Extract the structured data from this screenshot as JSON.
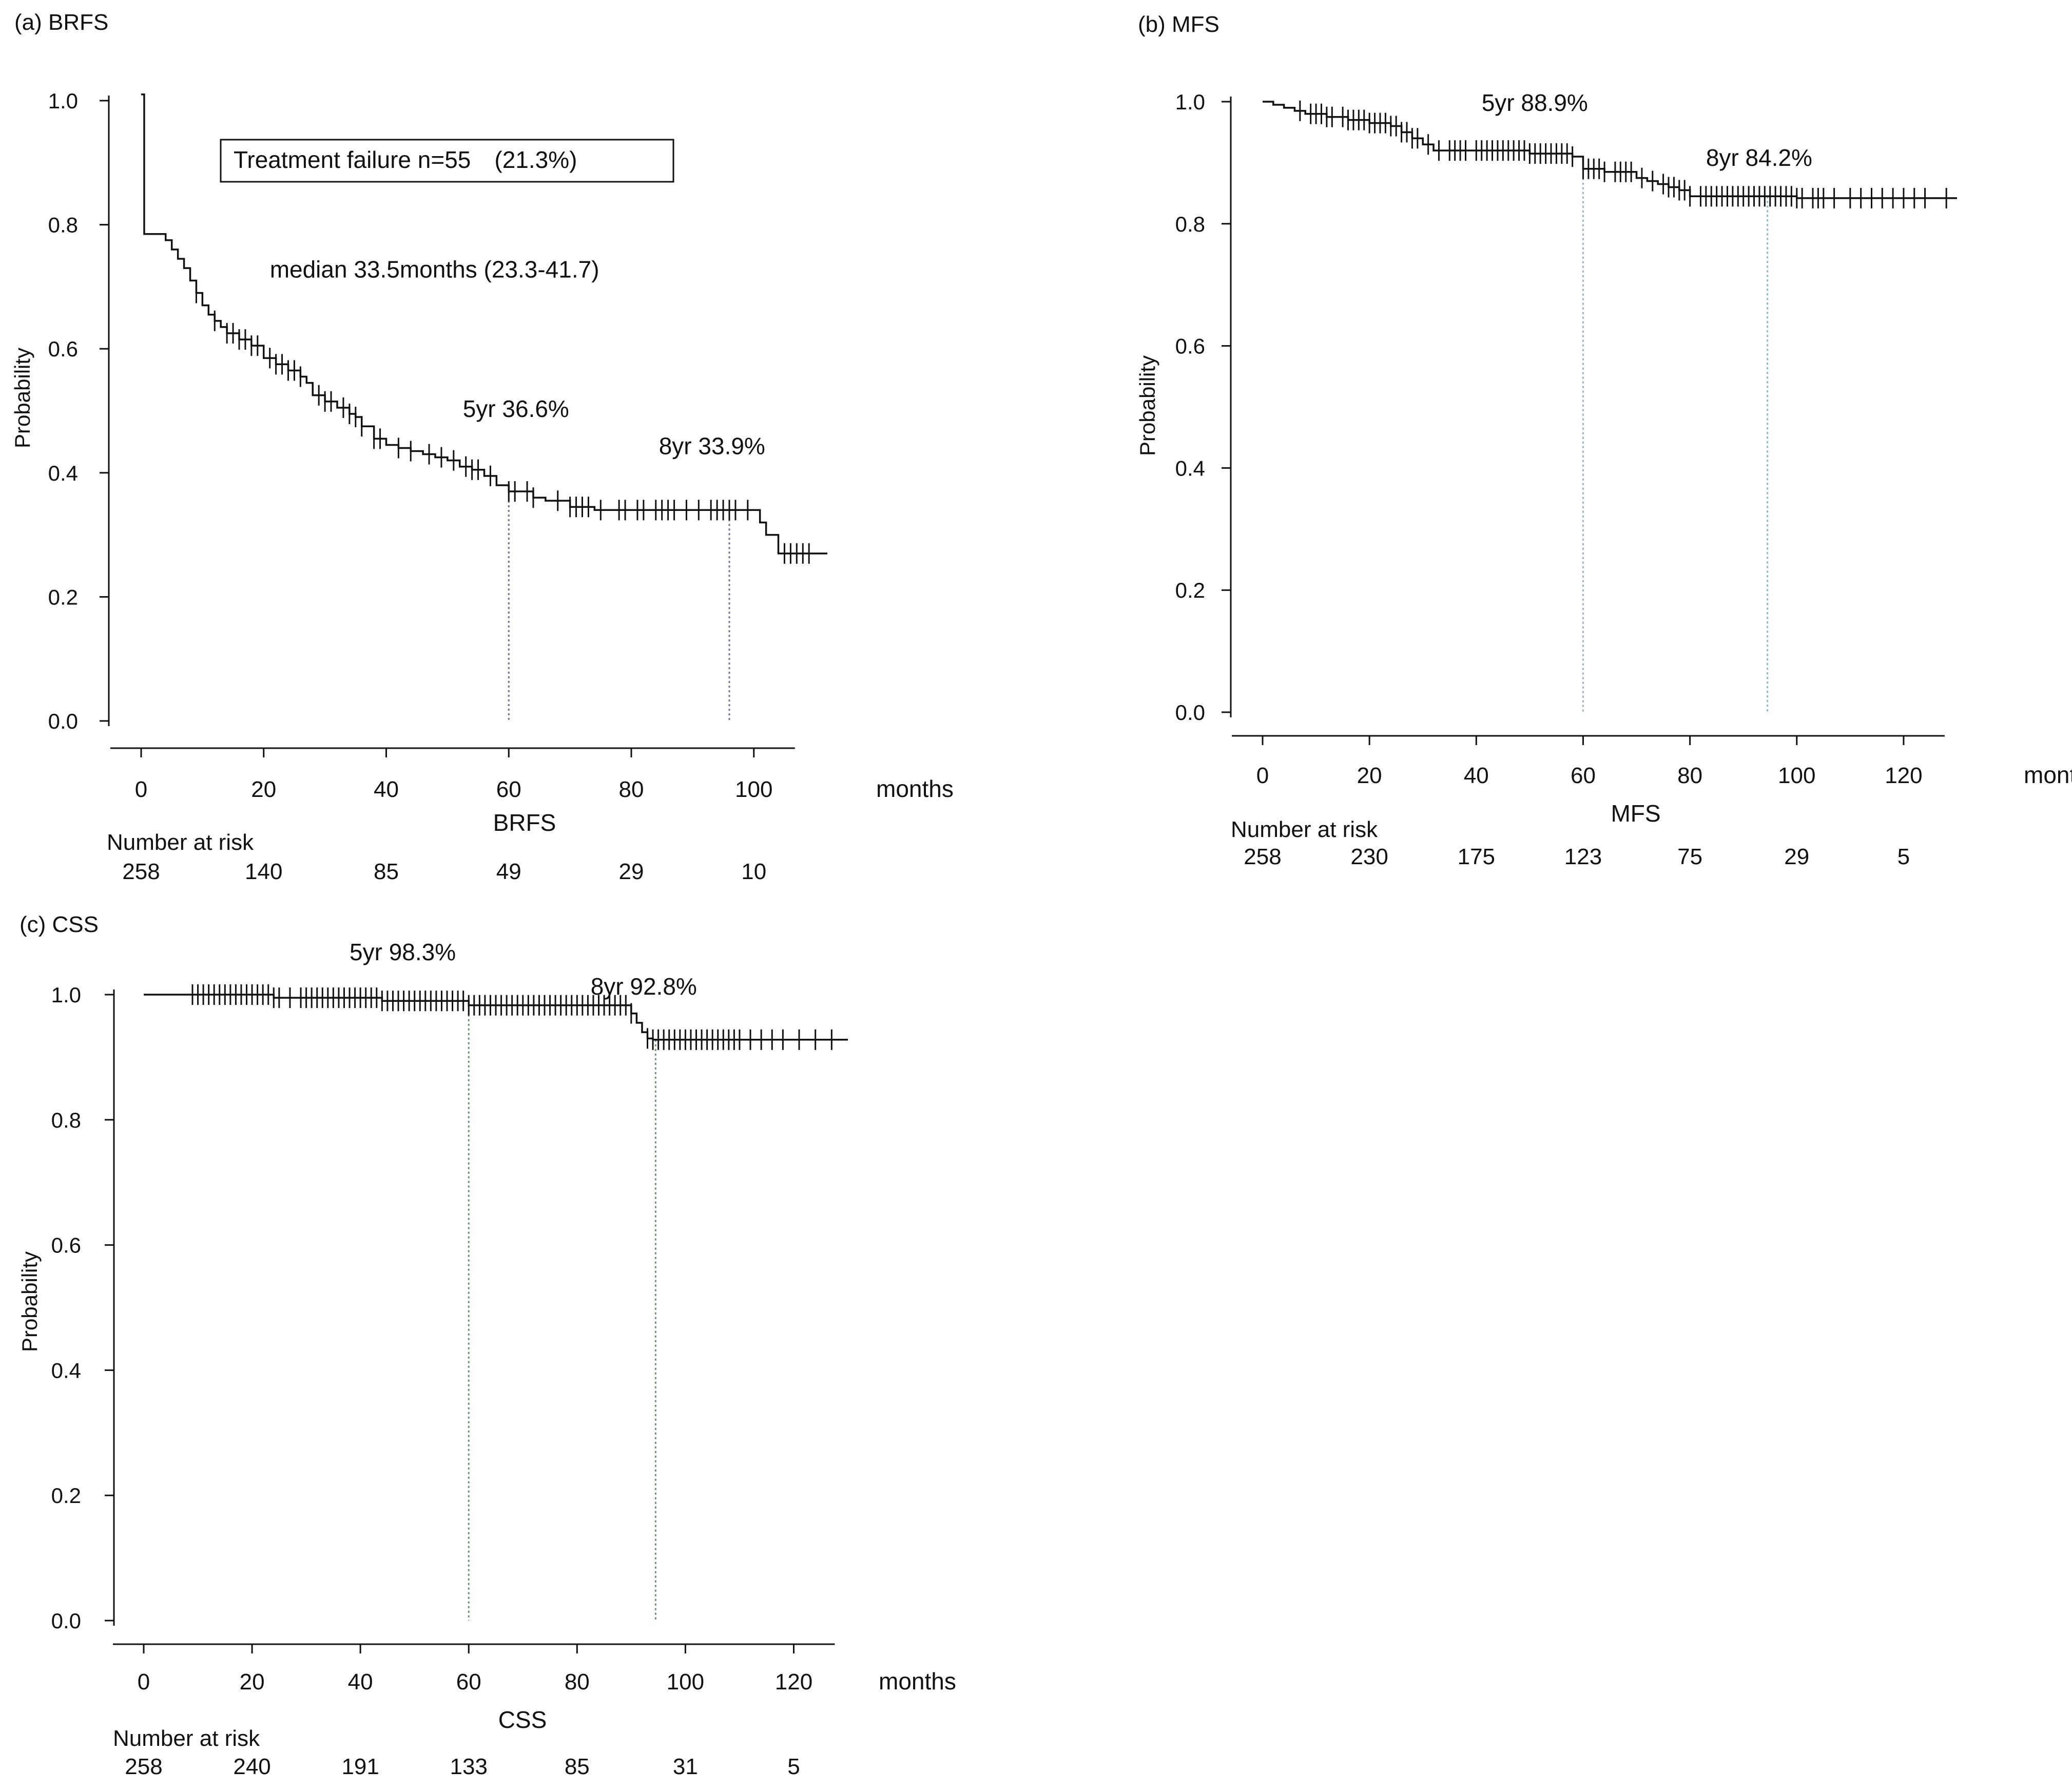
{
  "chart_data": [
    {
      "id": "a",
      "type": "line",
      "subtype": "kaplan-meier",
      "panel_label": "(a) BRFS",
      "xlabel": "BRFS",
      "x_unit_label": "months",
      "ylabel": "Probability",
      "xlim": [
        0,
        112
      ],
      "ylim": [
        0,
        1.0
      ],
      "x_ticks": [
        0,
        20,
        40,
        60,
        80,
        100
      ],
      "y_ticks": [
        0.0,
        0.2,
        0.4,
        0.6,
        0.8,
        1.0
      ],
      "tick_labels_y": [
        "0.0",
        "0.2",
        "0.4",
        "0.6",
        "0.8",
        "1.0"
      ],
      "tick_labels_x": [
        "0",
        "20",
        "40",
        "60",
        "80",
        "100"
      ],
      "curve": {
        "x": [
          0,
          0.5,
          0.5,
          3,
          4,
          5,
          6,
          7,
          8,
          9,
          10,
          11,
          12,
          13,
          14,
          16,
          18,
          20,
          22,
          24,
          26,
          27,
          28,
          30,
          32,
          34,
          35,
          36,
          38,
          40,
          42,
          44,
          46,
          48,
          50,
          52,
          54,
          56,
          58,
          60,
          62,
          64,
          66,
          68,
          70,
          72,
          74,
          76,
          78,
          80,
          85,
          90,
          95,
          100,
          101,
          102,
          103,
          104,
          108,
          112
        ],
        "y": [
          1.01,
          1.01,
          0.785,
          0.785,
          0.775,
          0.76,
          0.745,
          0.73,
          0.71,
          0.69,
          0.67,
          0.655,
          0.645,
          0.635,
          0.625,
          0.615,
          0.605,
          0.585,
          0.575,
          0.565,
          0.555,
          0.545,
          0.525,
          0.515,
          0.505,
          0.495,
          0.49,
          0.475,
          0.455,
          0.445,
          0.44,
          0.435,
          0.43,
          0.425,
          0.42,
          0.41,
          0.405,
          0.395,
          0.38,
          0.37,
          0.37,
          0.36,
          0.355,
          0.355,
          0.345,
          0.345,
          0.34,
          0.34,
          0.34,
          0.34,
          0.34,
          0.34,
          0.34,
          0.34,
          0.32,
          0.3,
          0.3,
          0.27,
          0.27,
          0.27
        ]
      },
      "censor_x": [
        9,
        12,
        14,
        15,
        16,
        17,
        18,
        19,
        21,
        22,
        23,
        24,
        25,
        26,
        29,
        30,
        31,
        33,
        34,
        35,
        36,
        38,
        39,
        42,
        44,
        47,
        49,
        51,
        53,
        54,
        55,
        57,
        60,
        61,
        63,
        64,
        68,
        70,
        71,
        72,
        73,
        75,
        78,
        79,
        81,
        82,
        84,
        85,
        86,
        87,
        89,
        91,
        93,
        94,
        95,
        96,
        97,
        99,
        105,
        106,
        107,
        108,
        109
      ],
      "reference_lines_x": [
        60,
        96
      ],
      "annotations": [
        {
          "text": "median 33.5months (23.3-41.7)",
          "x": 21,
          "y": 0.715
        },
        {
          "text": "5yr 36.6%",
          "x": 52.5,
          "y": 0.49
        },
        {
          "text": "8yr 33.9%",
          "x": 84.5,
          "y": 0.43
        }
      ],
      "box_annotation": {
        "text": "Treatment failure n=55　(21.3%)",
        "x": 12.5,
        "y": 0.9
      },
      "risk_table": {
        "title": "Number at risk",
        "x": [
          0,
          20,
          40,
          60,
          80,
          100
        ],
        "values": [
          "258",
          "140",
          "85",
          "49",
          "29",
          "10"
        ]
      }
    },
    {
      "id": "b",
      "type": "line",
      "subtype": "kaplan-meier",
      "panel_label": "(b) MFS",
      "xlabel": "MFS",
      "x_unit_label": "months",
      "ylabel": "Probability",
      "xlim": [
        0,
        130
      ],
      "ylim": [
        0,
        1.0
      ],
      "x_ticks": [
        0,
        20,
        40,
        60,
        80,
        100,
        120
      ],
      "y_ticks": [
        0.0,
        0.2,
        0.4,
        0.6,
        0.8,
        1.0
      ],
      "tick_labels_y": [
        "0.0",
        "0.2",
        "0.4",
        "0.6",
        "0.8",
        "1.0"
      ],
      "tick_labels_x": [
        "0",
        "20",
        "40",
        "60",
        "80",
        "100",
        "120"
      ],
      "curve": {
        "x": [
          0,
          2,
          4,
          6,
          8,
          12,
          16,
          20,
          24,
          26,
          28,
          30,
          32,
          40,
          50,
          58,
          60,
          64,
          68,
          70,
          72,
          74,
          76,
          78,
          80,
          100,
          130
        ],
        "y": [
          1.0,
          0.995,
          0.99,
          0.985,
          0.98,
          0.975,
          0.97,
          0.965,
          0.96,
          0.95,
          0.94,
          0.93,
          0.92,
          0.92,
          0.915,
          0.91,
          0.89,
          0.885,
          0.885,
          0.875,
          0.87,
          0.865,
          0.86,
          0.855,
          0.845,
          0.842,
          0.842
        ]
      },
      "censor_x": [
        7,
        9,
        10,
        11,
        12,
        13,
        15,
        16,
        17,
        18,
        19,
        20,
        21,
        22,
        23,
        24,
        25,
        26,
        27,
        28,
        29,
        31,
        33,
        35,
        36,
        37,
        38,
        40,
        41,
        42,
        43,
        44,
        45,
        46,
        47,
        48,
        49,
        50,
        51,
        52,
        53,
        54,
        55,
        56,
        57,
        58,
        60,
        61,
        62,
        63,
        64,
        66,
        67,
        68,
        69,
        71,
        73,
        75,
        76,
        77,
        78,
        79,
        80,
        82,
        83,
        84,
        85,
        86,
        87,
        88,
        89,
        90,
        91,
        92,
        93,
        94,
        95,
        96,
        97,
        98,
        99,
        100,
        101,
        103,
        104,
        105,
        107,
        110,
        112,
        114,
        116,
        118,
        120,
        122,
        124,
        128
      ],
      "reference_lines_x": [
        60,
        94.5
      ],
      "annotations": [
        {
          "text": "5yr 88.9%",
          "x": 41,
          "y": 0.985
        },
        {
          "text": "8yr 84.2%",
          "x": 83,
          "y": 0.895
        }
      ],
      "risk_table": {
        "title": "Number at risk",
        "x": [
          0,
          20,
          40,
          60,
          80,
          100,
          120
        ],
        "values": [
          "258",
          "230",
          "175",
          "123",
          "75",
          "29",
          "5"
        ]
      }
    },
    {
      "id": "c",
      "type": "line",
      "subtype": "kaplan-meier",
      "panel_label": "(c) CSS",
      "xlabel": "CSS",
      "x_unit_label": "months",
      "ylabel": "Probability",
      "xlim": [
        0,
        130
      ],
      "ylim": [
        0,
        1.0
      ],
      "x_ticks": [
        0,
        20,
        40,
        60,
        80,
        100,
        120
      ],
      "y_ticks": [
        0.0,
        0.2,
        0.4,
        0.6,
        0.8,
        1.0
      ],
      "tick_labels_y": [
        "0.0",
        "0.2",
        "0.4",
        "0.6",
        "0.8",
        "1.0"
      ],
      "tick_labels_x": [
        "0",
        "20",
        "40",
        "60",
        "80",
        "100",
        "120"
      ],
      "curve": {
        "x": [
          0,
          20,
          24,
          40,
          44,
          60,
          80,
          88,
          90,
          91,
          92,
          93,
          94,
          130
        ],
        "y": [
          1.0,
          1.0,
          0.995,
          0.995,
          0.99,
          0.983,
          0.983,
          0.983,
          0.97,
          0.955,
          0.94,
          0.93,
          0.928,
          0.928
        ]
      },
      "censor_x": [
        9,
        10,
        11,
        12,
        13,
        14,
        15,
        16,
        17,
        18,
        19,
        20,
        21,
        22,
        23,
        24,
        25,
        27,
        29,
        30,
        31,
        32,
        33,
        34,
        35,
        36,
        37,
        38,
        39,
        40,
        41,
        42,
        43,
        44,
        45,
        46,
        47,
        48,
        49,
        50,
        51,
        52,
        53,
        54,
        55,
        56,
        57,
        58,
        59,
        60,
        61,
        62,
        63,
        64,
        65,
        66,
        67,
        68,
        69,
        70,
        71,
        72,
        73,
        74,
        75,
        76,
        77,
        78,
        79,
        80,
        81,
        82,
        83,
        84,
        85,
        86,
        87,
        88,
        89,
        90,
        93,
        94,
        95,
        96,
        97,
        98,
        99,
        100,
        101,
        102,
        103,
        104,
        105,
        106,
        107,
        108,
        109,
        110,
        112,
        114,
        116,
        118,
        121,
        124,
        127
      ],
      "reference_lines_x": [
        60,
        94.5
      ],
      "annotations": [
        {
          "text": "5yr 98.3%",
          "x": 38,
          "y": 1.055
        },
        {
          "text": "8yr 92.8%",
          "x": 82.5,
          "y": 1.0
        }
      ],
      "risk_table": {
        "title": "Number at risk",
        "x": [
          0,
          20,
          40,
          60,
          80,
          100,
          120
        ],
        "values": [
          "258",
          "240",
          "191",
          "133",
          "85",
          "31",
          "5"
        ]
      }
    }
  ]
}
